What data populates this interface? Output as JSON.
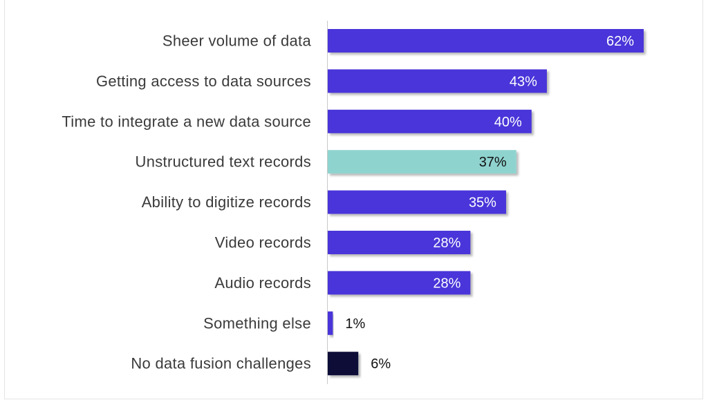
{
  "chart_data": {
    "type": "bar",
    "orientation": "horizontal",
    "categories": [
      "Sheer volume of data",
      "Getting access to data sources",
      "Time to integrate a new data source",
      "Unstructured text records",
      "Ability to digitize records",
      "Video records",
      "Audio records",
      "Something else",
      "No data fusion challenges"
    ],
    "values": [
      62,
      43,
      40,
      37,
      35,
      28,
      28,
      1,
      6
    ],
    "value_labels": [
      "62%",
      "43%",
      "40%",
      "37%",
      "35%",
      "28%",
      "28%",
      "1%",
      "6%"
    ],
    "colors": [
      "#4a35d9",
      "#4a35d9",
      "#4a35d9",
      "#8fd3cf",
      "#4a35d9",
      "#4a35d9",
      "#4a35d9",
      "#4a35d9",
      "#0e1138"
    ],
    "label_colors": [
      "#ffffff",
      "#ffffff",
      "#ffffff",
      "#111111",
      "#ffffff",
      "#ffffff",
      "#ffffff",
      "#111111",
      "#111111"
    ],
    "xlim": [
      0,
      65
    ],
    "grid": false,
    "legend": "none"
  }
}
